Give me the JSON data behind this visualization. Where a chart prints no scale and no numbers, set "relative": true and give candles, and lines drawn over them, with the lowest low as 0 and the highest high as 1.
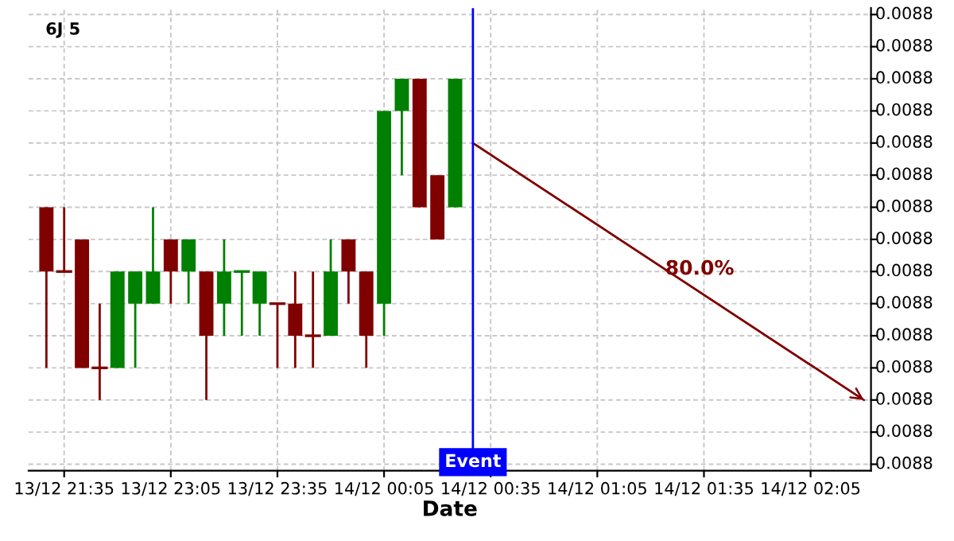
{
  "chart_data": {
    "type": "candlestick",
    "title": "6J 5",
    "xlabel": "Date",
    "relative": true,
    "categories": [
      null,
      "13/12 21:35",
      null,
      null,
      null,
      null,
      null,
      "13/12 23:05",
      null,
      null,
      null,
      null,
      null,
      "13/12 23:35",
      null,
      null,
      null,
      null,
      null,
      "14/12 00:05",
      null,
      null,
      null,
      null,
      null,
      "14/12 00:35",
      null,
      null,
      null,
      null,
      null,
      "14/12 01:05",
      null,
      null,
      null,
      null,
      null,
      "14/12 01:35",
      null,
      null,
      null,
      null,
      null,
      "14/12 02:05",
      null,
      null,
      null
    ],
    "ohlc": [
      [
        0.6,
        0.6,
        0.1,
        0.4
      ],
      [
        0.4,
        0.6,
        0.4,
        0.4
      ],
      [
        0.5,
        0.5,
        0.1,
        0.1
      ],
      [
        0.1,
        0.3,
        0.0,
        0.1
      ],
      [
        0.1,
        0.4,
        0.1,
        0.4
      ],
      [
        0.3,
        0.4,
        0.1,
        0.4
      ],
      [
        0.3,
        0.6,
        0.3,
        0.4
      ],
      [
        0.5,
        0.5,
        0.3,
        0.4
      ],
      [
        0.4,
        0.5,
        0.3,
        0.5
      ],
      [
        0.4,
        0.4,
        0.0,
        0.2
      ],
      [
        0.3,
        0.5,
        0.2,
        0.4
      ],
      [
        0.4,
        0.4,
        0.2,
        0.4
      ],
      [
        0.3,
        0.4,
        0.2,
        0.4
      ],
      [
        0.3,
        0.3,
        0.1,
        0.3
      ],
      [
        0.3,
        0.4,
        0.1,
        0.2
      ],
      [
        0.2,
        0.4,
        0.1,
        0.2
      ],
      [
        0.2,
        0.5,
        0.2,
        0.4
      ],
      [
        0.5,
        0.5,
        0.3,
        0.4
      ],
      [
        0.4,
        0.4,
        0.1,
        0.2
      ],
      [
        0.3,
        0.9,
        0.2,
        0.9
      ],
      [
        0.9,
        1.0,
        0.7,
        1.0
      ],
      [
        1.0,
        1.0,
        0.6,
        0.6
      ],
      [
        0.7,
        0.7,
        0.5,
        0.5
      ],
      [
        0.6,
        1.0,
        0.6,
        1.0
      ],
      null,
      null,
      null,
      null,
      null,
      null,
      null,
      null,
      null,
      null,
      null,
      null,
      null,
      null,
      null,
      null,
      null,
      null,
      null,
      null,
      null,
      null,
      null
    ],
    "colors": [
      "#800000",
      "#800000",
      "#800000",
      "#800000",
      "#008000",
      "#008000",
      "#008000",
      "#800000",
      "#008000",
      "#800000",
      "#008000",
      "#008000",
      "#008000",
      "#800000",
      "#800000",
      "#800000",
      "#008000",
      "#800000",
      "#800000",
      "#008000",
      "#008000",
      "#800000",
      "#800000",
      "#008000",
      null,
      null,
      null,
      null,
      null,
      null,
      null,
      null,
      null,
      null,
      null,
      null,
      null,
      null,
      null,
      null,
      null,
      null,
      null,
      null,
      null,
      null,
      null
    ],
    "series": [
      {
        "type": "line",
        "values": [
          null,
          null,
          null,
          null,
          null,
          null,
          null,
          null,
          null,
          null,
          null,
          null,
          null,
          null,
          null,
          null,
          null,
          null,
          null,
          null,
          null,
          null,
          null,
          null,
          0.8,
          null,
          null,
          null,
          null,
          null,
          null,
          null,
          null,
          null,
          null,
          null,
          null,
          null,
          null,
          null,
          null,
          null,
          null,
          null,
          null,
          null,
          0.0
        ],
        "color": "#800000"
      }
    ],
    "annotations": [
      "80.0%",
      "Event",
      "0.0088",
      "0.0088",
      "0.0088",
      "0.0088",
      "0.0088",
      "0.0088",
      "0.0088",
      "0.0088",
      "0.0088",
      "0.0088",
      "0.0088",
      "0.0088",
      "0.0088",
      "0.0088",
      "0.0088"
    ],
    "grid": true
  }
}
